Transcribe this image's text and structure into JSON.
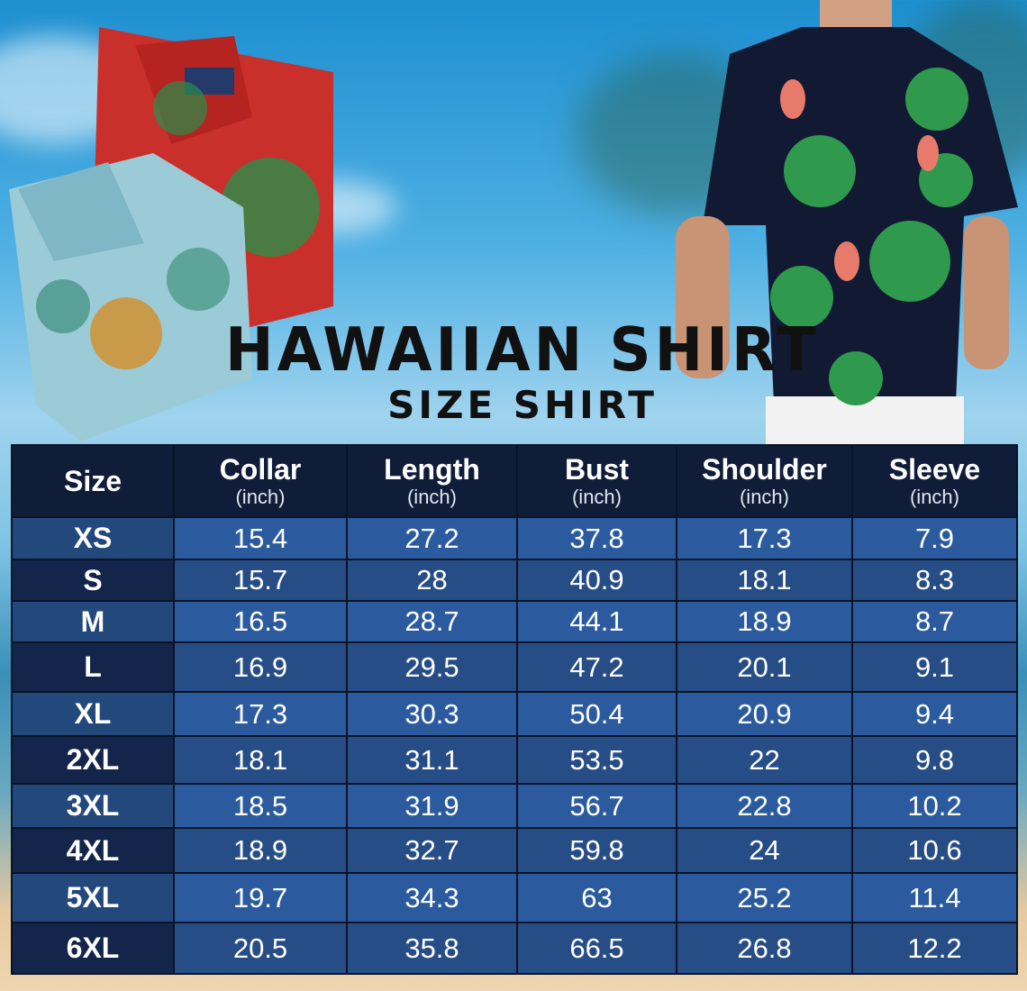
{
  "title": "HAWAIIAN SHIRT",
  "subtitle": "SIZE SHIRT",
  "colors": {
    "header": "#0f1d38",
    "row_light": "#2b5b9e",
    "row_dark": "#274d86",
    "size_col": "#13254a",
    "text": "#ffffff"
  },
  "table": {
    "headers": [
      {
        "label": "Size",
        "unit": ""
      },
      {
        "label": "Collar",
        "unit": "(inch)"
      },
      {
        "label": "Length",
        "unit": "(inch)"
      },
      {
        "label": "Bust",
        "unit": "(inch)"
      },
      {
        "label": "Shoulder",
        "unit": "(inch)"
      },
      {
        "label": "Sleeve",
        "unit": "(inch)"
      }
    ],
    "rows": [
      [
        "XS",
        "15.4",
        "27.2",
        "37.8",
        "17.3",
        "7.9"
      ],
      [
        "S",
        "15.7",
        "28",
        "40.9",
        "18.1",
        "8.3"
      ],
      [
        "M",
        "16.5",
        "28.7",
        "44.1",
        "18.9",
        "8.7"
      ],
      [
        "L",
        "16.9",
        "29.5",
        "47.2",
        "20.1",
        "9.1"
      ],
      [
        "XL",
        "17.3",
        "30.3",
        "50.4",
        "20.9",
        "9.4"
      ],
      [
        "2XL",
        "18.1",
        "31.1",
        "53.5",
        "22",
        "9.8"
      ],
      [
        "3XL",
        "18.5",
        "31.9",
        "56.7",
        "22.8",
        "10.2"
      ],
      [
        "4XL",
        "18.9",
        "32.7",
        "59.8",
        "24",
        "10.6"
      ],
      [
        "5XL",
        "19.7",
        "34.3",
        "63",
        "25.2",
        "11.4"
      ],
      [
        "6XL",
        "20.5",
        "35.8",
        "66.5",
        "26.8",
        "12.2"
      ]
    ]
  }
}
